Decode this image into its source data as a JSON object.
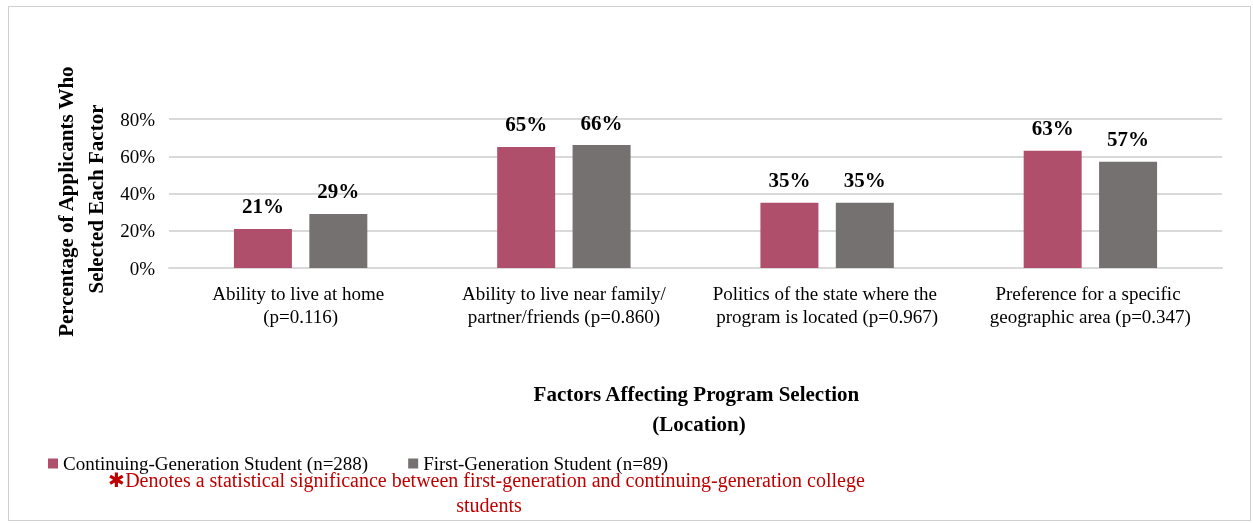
{
  "chart_data": {
    "type": "bar",
    "xlabel": "Factors Affecting Program Selection (Location)",
    "ylabel": "Percentage of Applicants Who Selected Each Factor",
    "categories": [
      "Ability to live at home (p=0.116)",
      "Ability to live near family/partner/friends (p=0.860)",
      "Politics of the state where the program is located (p=0.967)",
      "Preference for a specific geographic area (p=0.347)"
    ],
    "series": [
      {
        "name": "Continuing-Generation Student (n=288)",
        "color": "#b04f6c",
        "values": [
          21,
          65,
          35,
          63
        ],
        "value_labels": [
          "21%",
          "65%",
          "35%",
          "63%"
        ]
      },
      {
        "name": "First-Generation Student (n=89)",
        "color": "#767171",
        "values": [
          29,
          66,
          35,
          57
        ],
        "value_labels": [
          "29%",
          "66%",
          "35%",
          "57%"
        ]
      }
    ],
    "ylim": [
      0,
      80
    ],
    "yticks": [
      {
        "value": 0,
        "label": "0%"
      },
      {
        "value": 20,
        "label": "20%"
      },
      {
        "value": 40,
        "label": "40%"
      },
      {
        "value": 60,
        "label": "60%"
      },
      {
        "value": 80,
        "label": "80%"
      }
    ],
    "grid": "y",
    "legend": "bottom left",
    "annotations": [
      "✱Denotes a statistical significance between first-generation and continuing-generation college students"
    ]
  }
}
